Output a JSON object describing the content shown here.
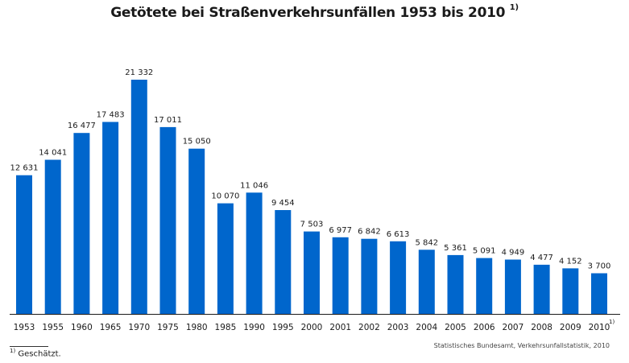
{
  "chart_data": {
    "type": "bar",
    "title": "Getötete bei Straßenverkehrsunfällen 1953 bis 2010",
    "title_footnote_marker": "1)",
    "categories": [
      "1953",
      "1955",
      "1960",
      "1965",
      "1970",
      "1975",
      "1980",
      "1985",
      "1990",
      "1995",
      "2000",
      "2001",
      "2002",
      "2003",
      "2004",
      "2005",
      "2006",
      "2007",
      "2008",
      "2009",
      "2010"
    ],
    "values": [
      12631,
      14041,
      16477,
      17483,
      21332,
      17011,
      15050,
      10070,
      11046,
      9454,
      7503,
      6977,
      6842,
      6613,
      5842,
      5361,
      5091,
      4949,
      4477,
      4152,
      3700
    ],
    "value_labels": [
      "12 631",
      "14 041",
      "16 477",
      "17 483",
      "21 332",
      "17 011",
      "15 050",
      "10 070",
      "11 046",
      "9 454",
      "7 503",
      "6 977",
      "6 842",
      "6 613",
      "5 842",
      "5 361",
      "5 091",
      "4 949",
      "4 477",
      "4 152",
      "3 700"
    ],
    "estimated_marker_category": "2010",
    "estimated_marker": "1)",
    "ylim": [
      0,
      21332
    ],
    "xlabel": "",
    "ylabel": "",
    "grid": false,
    "bar_color": "#0066cc",
    "axis_color": "#1a1a1a"
  },
  "footnote": {
    "marker": "1)",
    "text": "Geschätzt."
  },
  "source": "Statistisches Bundesamt, Verkehrsunfallstatistik, 2010"
}
